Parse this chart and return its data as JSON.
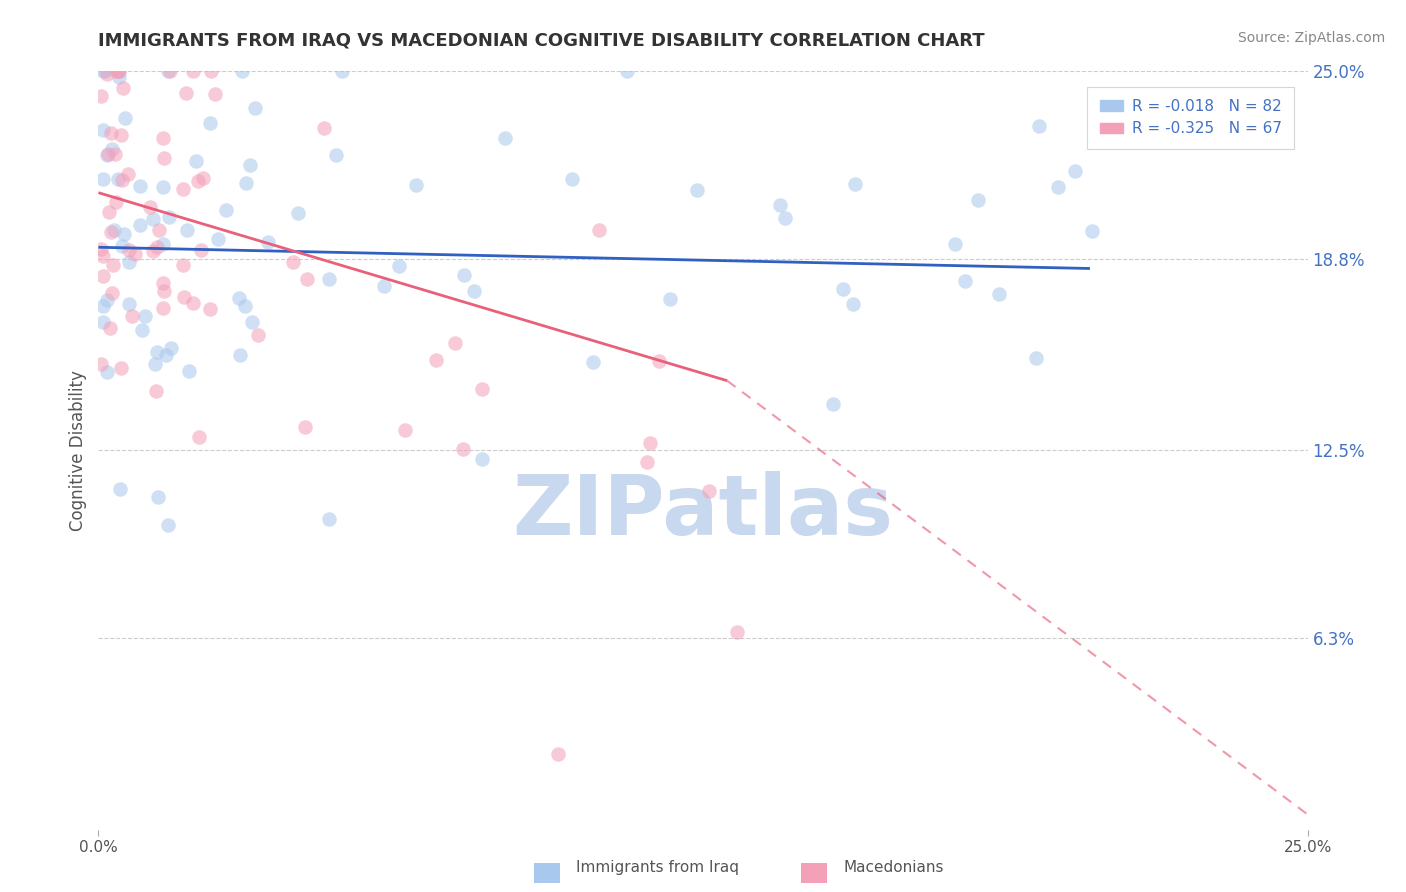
{
  "title": "IMMIGRANTS FROM IRAQ VS MACEDONIAN COGNITIVE DISABILITY CORRELATION CHART",
  "source": "Source: ZipAtlas.com",
  "ylabel": "Cognitive Disability",
  "xlim": [
    0.0,
    0.25
  ],
  "ylim": [
    0.0,
    0.25
  ],
  "ytick_right_vals": [
    0.063,
    0.125,
    0.188,
    0.25
  ],
  "ytick_right_labels": [
    "6.3%",
    "12.5%",
    "18.8%",
    "25.0%"
  ],
  "series1_name": "Immigrants from Iraq",
  "series1_color": "#A8C8EE",
  "series1_R": -0.018,
  "series1_N": 82,
  "series2_name": "Macedonians",
  "series2_color": "#F4A0B8",
  "series2_R": -0.325,
  "series2_N": 67,
  "trend1_color": "#3060C0",
  "trend2_color": "#E8607A",
  "trend1_y_start": 0.192,
  "trend1_y_end": 0.185,
  "trend1_x_end": 0.205,
  "trend2_y_start": 0.21,
  "trend2_solid_x_end": 0.13,
  "trend2_solid_y_end": 0.148,
  "trend2_dash_x_end": 0.25,
  "trend2_dash_y_end": 0.005,
  "watermark": "ZIPatlas",
  "watermark_color": "#C8D8EE",
  "background_color": "#FFFFFF",
  "grid_color": "#CCCCCC",
  "title_fontsize": 13,
  "legend_fontsize": 11,
  "seed": 99,
  "scatter_alpha": 0.55,
  "scatter_size": 110
}
